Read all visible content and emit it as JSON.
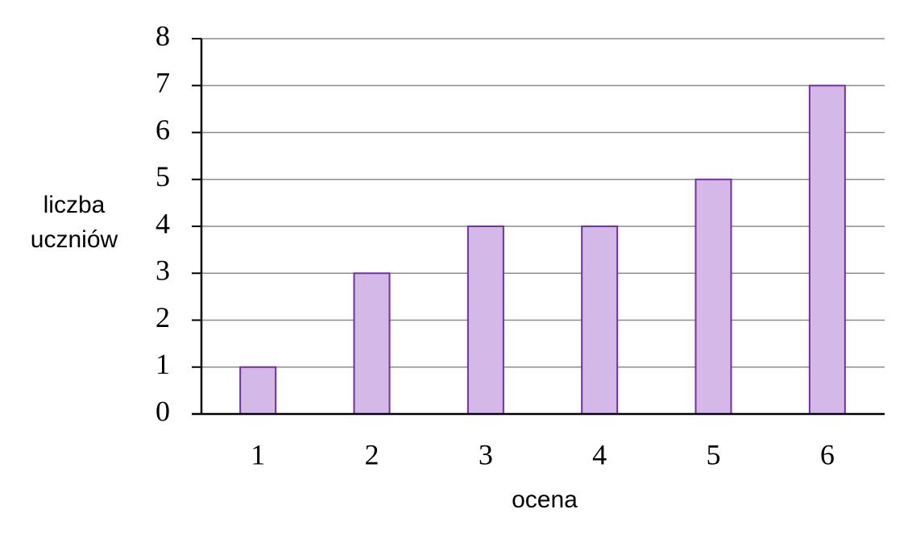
{
  "chart_data": {
    "type": "bar",
    "categories": [
      "1",
      "2",
      "3",
      "4",
      "5",
      "6"
    ],
    "values": [
      1,
      3,
      4,
      4,
      5,
      7
    ],
    "color": "#d4b9e8",
    "edge_color": "#7030a0",
    "xlabel": "ocena",
    "ylabel": [
      "liczba",
      "uczniów"
    ],
    "ylim": [
      0,
      8
    ],
    "yticks": [
      0,
      1,
      2,
      3,
      4,
      5,
      6,
      7,
      8
    ],
    "grid": true
  }
}
